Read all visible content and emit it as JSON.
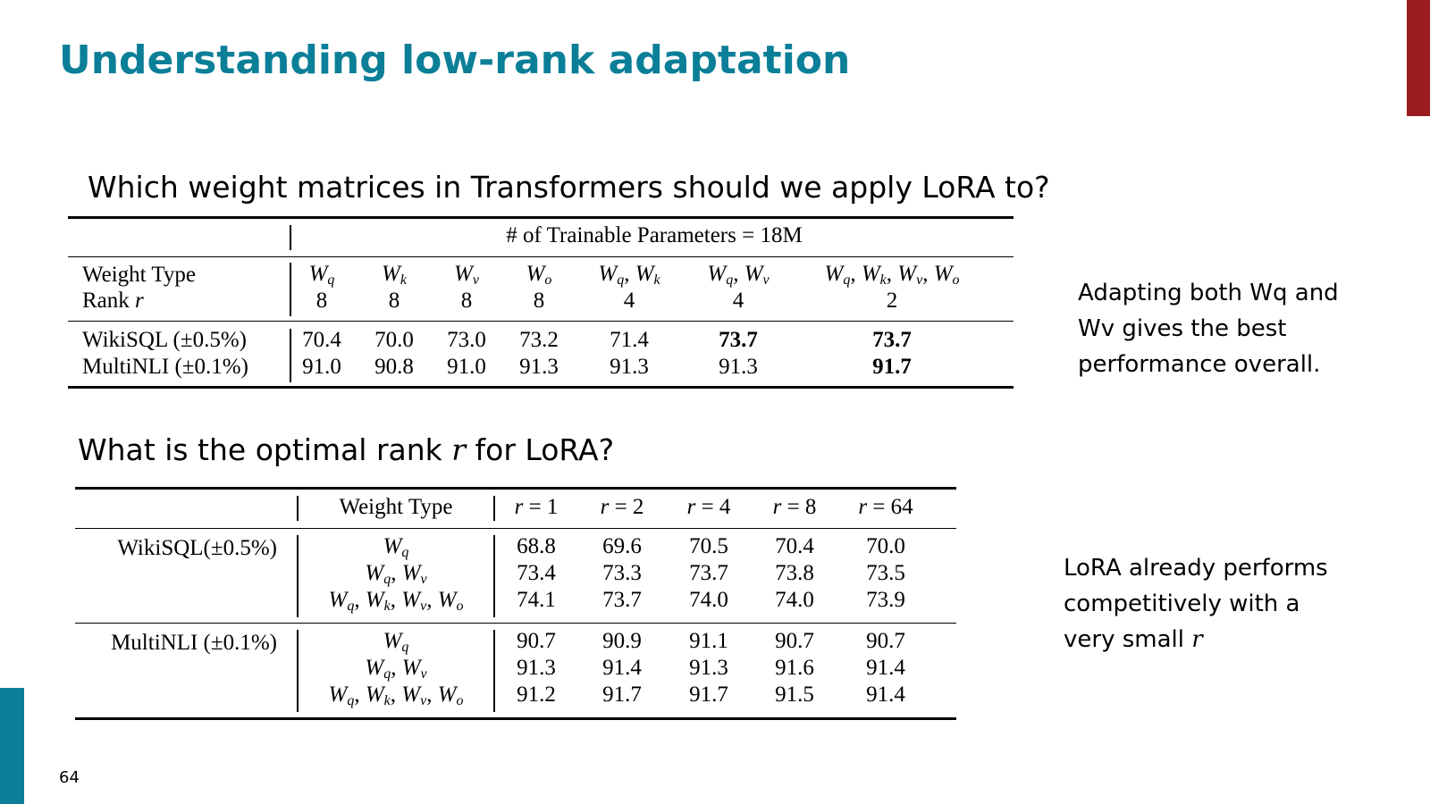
{
  "title": "Understanding low-rank adaptation",
  "question1": "Which weight matrices in Transformers should we apply LoRA to?",
  "question2_prefix": "What is the optimal rank ",
  "question2_var": "r",
  "question2_suffix": " for LoRA?",
  "note1": "Adapting both Wq and Wv gives the best performance overall.",
  "note2_prefix": "LoRA already performs competitively with a very small ",
  "note2_var": "r",
  "page_number": "64",
  "colors": {
    "title": "#0b7f98",
    "accent_red": "#9b1c1f",
    "accent_teal": "#0b7f98"
  },
  "table1": {
    "header": "# of Trainable Parameters = 18M",
    "row_label_weight": "Weight Type",
    "row_label_rank_prefix": "Rank ",
    "row_label_rank_var": "r",
    "columns": [
      {
        "weight": "W_q",
        "rank": "8"
      },
      {
        "weight": "W_k",
        "rank": "8"
      },
      {
        "weight": "W_v",
        "rank": "8"
      },
      {
        "weight": "W_o",
        "rank": "8"
      },
      {
        "weight": "W_q, W_k",
        "rank": "4"
      },
      {
        "weight": "W_q, W_v",
        "rank": "4"
      },
      {
        "weight": "W_q, W_k, W_v, W_o",
        "rank": "2"
      }
    ],
    "rows": [
      {
        "label": "WikiSQL (±0.5%)",
        "values": [
          "70.4",
          "70.0",
          "73.0",
          "73.2",
          "71.4",
          "73.7",
          "73.7"
        ],
        "bold": [
          false,
          false,
          false,
          false,
          false,
          true,
          true
        ]
      },
      {
        "label": "MultiNLI (±0.1%)",
        "values": [
          "91.0",
          "90.8",
          "91.0",
          "91.3",
          "91.3",
          "91.3",
          "91.7"
        ],
        "bold": [
          false,
          false,
          false,
          false,
          false,
          false,
          true
        ]
      }
    ]
  },
  "table2": {
    "header_weight_type": "Weight Type",
    "ranks": [
      "r = 1",
      "r = 2",
      "r = 4",
      "r = 8",
      "r = 64"
    ],
    "groups": [
      {
        "label": "WikiSQL(±0.5%)",
        "rows": [
          {
            "weight": "W_q",
            "values": [
              "68.8",
              "69.6",
              "70.5",
              "70.4",
              "70.0"
            ]
          },
          {
            "weight": "W_q, W_v",
            "values": [
              "73.4",
              "73.3",
              "73.7",
              "73.8",
              "73.5"
            ]
          },
          {
            "weight": "W_q, W_k, W_v, W_o",
            "values": [
              "74.1",
              "73.7",
              "74.0",
              "74.0",
              "73.9"
            ]
          }
        ]
      },
      {
        "label": "MultiNLI (±0.1%)",
        "rows": [
          {
            "weight": "W_q",
            "values": [
              "90.7",
              "90.9",
              "91.1",
              "90.7",
              "90.7"
            ]
          },
          {
            "weight": "W_q, W_v",
            "values": [
              "91.3",
              "91.4",
              "91.3",
              "91.6",
              "91.4"
            ]
          },
          {
            "weight": "W_q, W_k, W_v, W_o",
            "values": [
              "91.2",
              "91.7",
              "91.7",
              "91.5",
              "91.4"
            ]
          }
        ]
      }
    ]
  }
}
